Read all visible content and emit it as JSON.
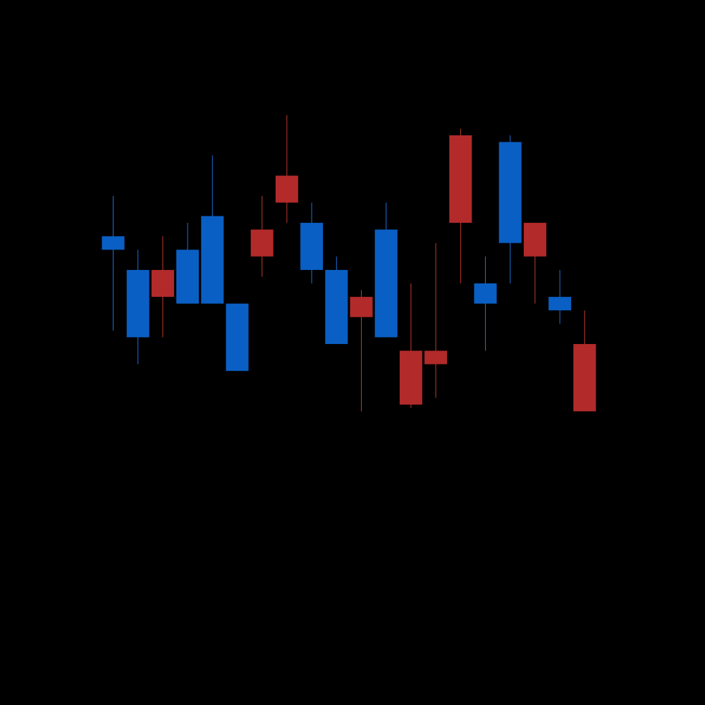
{
  "chart_data": {
    "type": "candlestick",
    "title": "",
    "xlabel": "",
    "ylabel": "",
    "grid": false,
    "legend": "none",
    "ylim": [
      0,
      100
    ],
    "colors": {
      "background": "#000000",
      "up": "#0a5fc4",
      "down": "#b22a2a",
      "up_wick": "#1f6fd6",
      "down_wick": "#c23a2a"
    },
    "candles": [
      {
        "open": 65,
        "close": 67,
        "high": 73,
        "low": 53,
        "direction": "up"
      },
      {
        "open": 52,
        "close": 62,
        "high": 65,
        "low": 48,
        "direction": "up"
      },
      {
        "open": 62,
        "close": 58,
        "high": 67,
        "low": 52,
        "direction": "down"
      },
      {
        "open": 57,
        "close": 65,
        "high": 69,
        "low": 57,
        "direction": "up"
      },
      {
        "open": 57,
        "close": 70,
        "high": 79,
        "low": 57,
        "direction": "up"
      },
      {
        "open": 47,
        "close": 57,
        "high": 57,
        "low": 47,
        "direction": "up"
      },
      {
        "open": 68,
        "close": 64,
        "high": 73,
        "low": 61,
        "direction": "down"
      },
      {
        "open": 76,
        "close": 72,
        "high": 85,
        "low": 69,
        "direction": "down"
      },
      {
        "open": 62,
        "close": 69,
        "high": 72,
        "low": 60,
        "direction": "up"
      },
      {
        "open": 51,
        "close": 62,
        "high": 64,
        "low": 51,
        "direction": "up"
      },
      {
        "open": 58,
        "close": 55,
        "high": 59,
        "low": 41,
        "direction": "down"
      },
      {
        "open": 52,
        "close": 68,
        "high": 72,
        "low": 52,
        "direction": "up"
      },
      {
        "open": 50,
        "close": 42,
        "high": 60,
        "low": 41.5,
        "direction": "down"
      },
      {
        "open": 50,
        "close": 48,
        "high": 66,
        "low": 43,
        "direction": "down"
      },
      {
        "open": 82,
        "close": 69,
        "high": 83,
        "low": 60,
        "direction": "down"
      },
      {
        "open": 57,
        "close": 60,
        "high": 64,
        "low": 50,
        "direction": "up"
      },
      {
        "open": 66,
        "close": 81,
        "high": 82,
        "low": 60,
        "direction": "up"
      },
      {
        "open": 69,
        "close": 64,
        "high": 69,
        "low": 57,
        "direction": "down"
      },
      {
        "open": 56,
        "close": 58,
        "high": 62,
        "low": 54,
        "direction": "up"
      },
      {
        "open": 51,
        "close": 41,
        "high": 56,
        "low": 41,
        "direction": "down"
      }
    ]
  }
}
